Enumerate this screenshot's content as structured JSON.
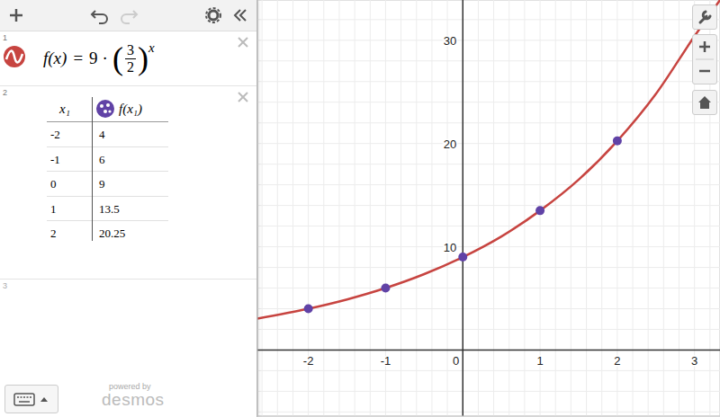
{
  "expressions": [
    {
      "number": "1",
      "expression": {
        "lhs": "f(x)",
        "equals": "=",
        "coefficient": 9,
        "times": "·",
        "open": "(",
        "numerator": 3,
        "denominator": 2,
        "close": ")",
        "exponent": "x"
      }
    },
    {
      "number": "2",
      "table": {
        "columns": [
          "x₁",
          "f(x₁)"
        ]
      }
    },
    {
      "number": "3"
    }
  ],
  "footer": {
    "powered_by": "powered by",
    "brand": "desmos"
  },
  "chart_data": {
    "type": "line",
    "xlim": [
      -2.66,
      3.33
    ],
    "ylim": [
      -6.4,
      33.9
    ],
    "xticks": [
      -2,
      -1,
      0,
      1,
      2,
      3
    ],
    "yticks": [
      10,
      20,
      30
    ],
    "grid": true,
    "series": [
      {
        "type": "line",
        "color": "#c74440",
        "x": [
          -2.66,
          -2,
          -1.5,
          -1,
          -0.5,
          0,
          0.5,
          1,
          1.5,
          2,
          2.5,
          3,
          3.33
        ],
        "values": [
          3.04,
          4,
          4.9,
          6,
          7.35,
          9,
          11,
          13.5,
          16.5,
          20.25,
          24.8,
          30.4,
          33.9
        ]
      },
      {
        "type": "scatter",
        "color": "#6042a6",
        "marker": "circle",
        "x": [
          -2,
          -1,
          0,
          1,
          2
        ],
        "values": [
          4,
          6,
          9,
          13.5,
          20.25
        ]
      }
    ]
  }
}
